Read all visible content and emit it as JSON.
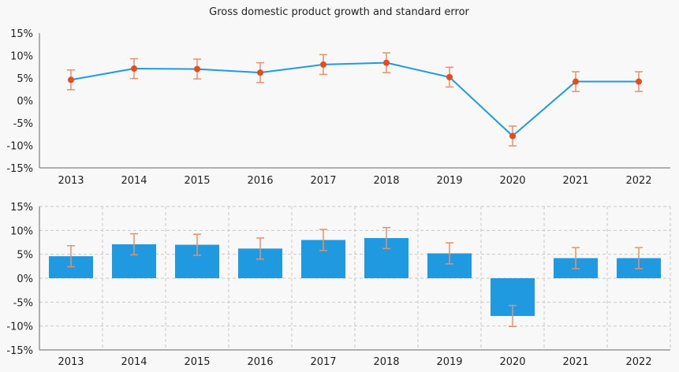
{
  "chart_data": [
    {
      "type": "line",
      "title": "Gross domestic product growth and standard error",
      "categories": [
        "2013",
        "2014",
        "2015",
        "2016",
        "2017",
        "2018",
        "2019",
        "2020",
        "2021",
        "2022"
      ],
      "series": [
        {
          "values": [
            4.6,
            7.1,
            7.0,
            6.2,
            8.0,
            8.4,
            5.2,
            -7.9,
            4.2,
            4.2
          ],
          "error": [
            2.2,
            2.2,
            2.2,
            2.2,
            2.2,
            2.2,
            2.2,
            2.2,
            2.2,
            2.2
          ]
        }
      ],
      "ylim": [
        -15,
        15
      ],
      "yticks": [
        "15%",
        "10%",
        "5%",
        "0%",
        "-5%",
        "-10%",
        "-15%"
      ],
      "grid": false,
      "colors": {
        "line": "#1f9ae0",
        "marker": "#e8491d",
        "error_bar": "#e8906a"
      }
    },
    {
      "type": "bar",
      "categories": [
        "2013",
        "2014",
        "2015",
        "2016",
        "2017",
        "2018",
        "2019",
        "2020",
        "2021",
        "2022"
      ],
      "series": [
        {
          "values": [
            4.6,
            7.1,
            7.0,
            6.2,
            8.0,
            8.4,
            5.2,
            -7.9,
            4.2,
            4.2
          ],
          "error": [
            2.2,
            2.2,
            2.2,
            2.2,
            2.2,
            2.2,
            2.2,
            2.2,
            2.2,
            2.2
          ]
        }
      ],
      "ylim": [
        -15,
        15
      ],
      "yticks": [
        "15%",
        "10%",
        "5%",
        "0%",
        "-5%",
        "-10%",
        "-15%"
      ],
      "grid": true,
      "colors": {
        "bar": "#1f9ae0",
        "error_bar": "#e8906a",
        "grid": "#c8c8c8"
      }
    }
  ]
}
